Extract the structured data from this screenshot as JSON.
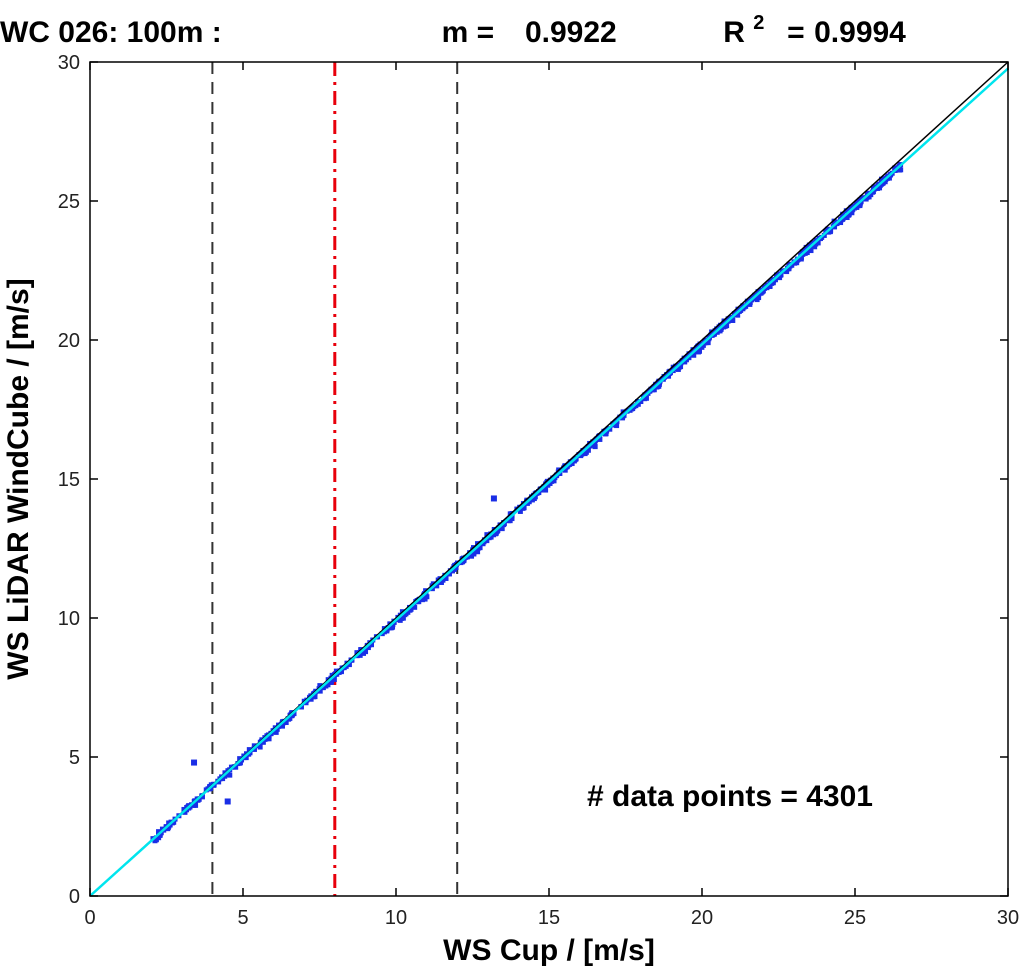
{
  "chart_data": {
    "type": "scatter",
    "title": {
      "label": "WC 026: 100m :",
      "slope_label": "m =",
      "slope_value": "0.9922",
      "r2_label": "R",
      "r2_superscript": "2",
      "r2_equals": "=",
      "r2_value": "0.9994"
    },
    "xlabel": "WS Cup / [m/s]",
    "ylabel": "WS LiDAR WindCube / [m/s]",
    "xlim": [
      0,
      30
    ],
    "ylim": [
      0,
      30
    ],
    "xticks": [
      "0",
      "5",
      "10",
      "15",
      "20",
      "25",
      "30"
    ],
    "yticks": [
      "0",
      "5",
      "10",
      "15",
      "20",
      "25",
      "30"
    ],
    "annotation": "# data points = 4301",
    "n_points": 4301,
    "slope": 0.9922,
    "r_squared": 0.9994,
    "reference_lines": [
      {
        "name": "lower-bound",
        "x": 4,
        "style": "dashed",
        "color": "#333333"
      },
      {
        "name": "reference-speed",
        "x": 8,
        "style": "dashdot",
        "color": "#e8000b"
      },
      {
        "name": "upper-bound",
        "x": 12,
        "style": "dashed",
        "color": "#333333"
      }
    ],
    "series": [
      {
        "name": "identity",
        "type": "line",
        "x": [
          0,
          30
        ],
        "y": [
          0,
          30
        ],
        "color": "#000000"
      },
      {
        "name": "fit",
        "type": "line",
        "x": [
          0,
          30
        ],
        "y": [
          0,
          29.766
        ],
        "color": "#00e5ee"
      },
      {
        "name": "measurements",
        "type": "scatter",
        "color": "#1a2ee6",
        "x_range": [
          2,
          26.5
        ],
        "outliers": [
          [
            13.2,
            14.3
          ],
          [
            4.5,
            3.4
          ],
          [
            3.4,
            4.8
          ]
        ]
      }
    ],
    "grid": false
  }
}
